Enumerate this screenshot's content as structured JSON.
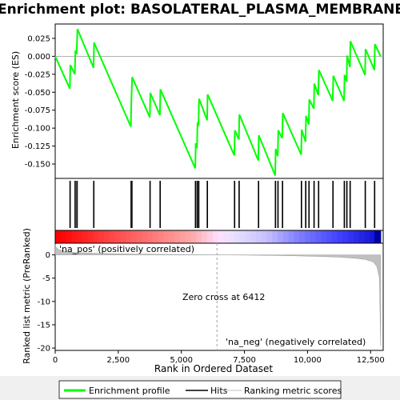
{
  "chart_data": {
    "type": "line",
    "title": "Enrichment plot: BASOLATERAL_PLASMA_MEMBRANE",
    "xlabel": "Rank in Ordered Dataset",
    "ylabel_top": "Enrichment score (ES)",
    "ylabel_bottom": "Ranked list metric (PreRanked)",
    "x_ticks": [
      "0",
      "2,500",
      "5,000",
      "7,500",
      "10,000",
      "12,500"
    ],
    "x_tick_values": [
      0,
      2500,
      5000,
      7500,
      10000,
      12500
    ],
    "xlim": [
      0,
      13000
    ],
    "es_ticks": [
      "0.025",
      "0.000",
      "-0.025",
      "-0.050",
      "-0.075",
      "-0.100",
      "-0.125",
      "-0.150"
    ],
    "es_tick_values": [
      0.025,
      0.0,
      -0.025,
      -0.05,
      -0.075,
      -0.1,
      -0.125,
      -0.15
    ],
    "es_ylim": [
      -0.17,
      0.045
    ],
    "metric_ticks": [
      "0",
      "-5",
      "-10",
      "-15",
      "-20"
    ],
    "metric_tick_values": [
      0,
      -5,
      -10,
      -15,
      -20
    ],
    "metric_ylim": [
      -20.5,
      2.5
    ],
    "zero_cross_label": "Zero cross at 6412",
    "zero_cross": 6412,
    "pos_label": "'na_pos' (positively correlated)",
    "neg_label": "'na_neg' (negatively correlated)",
    "es_profile": [
      [
        0,
        0.0
      ],
      [
        580,
        -0.045
      ],
      [
        600,
        -0.012
      ],
      [
        780,
        -0.025
      ],
      [
        800,
        0.008
      ],
      [
        850,
        0.003
      ],
      [
        880,
        0.038
      ],
      [
        1520,
        -0.016
      ],
      [
        1540,
        0.019
      ],
      [
        3000,
        -0.098
      ],
      [
        3020,
        -0.062
      ],
      [
        3050,
        -0.029
      ],
      [
        3750,
        -0.085
      ],
      [
        3770,
        -0.051
      ],
      [
        4150,
        -0.082
      ],
      [
        4170,
        -0.046
      ],
      [
        5550,
        -0.156
      ],
      [
        5570,
        -0.121
      ],
      [
        5620,
        -0.128
      ],
      [
        5640,
        -0.092
      ],
      [
        5680,
        -0.097
      ],
      [
        5700,
        -0.059
      ],
      [
        6020,
        -0.089
      ],
      [
        6040,
        -0.053
      ],
      [
        7100,
        -0.138
      ],
      [
        7120,
        -0.103
      ],
      [
        7280,
        -0.116
      ],
      [
        7300,
        -0.081
      ],
      [
        8050,
        -0.145
      ],
      [
        8070,
        -0.11
      ],
      [
        8720,
        -0.166
      ],
      [
        8740,
        -0.129
      ],
      [
        8820,
        -0.139
      ],
      [
        8840,
        -0.103
      ],
      [
        9000,
        -0.114
      ],
      [
        9020,
        -0.079
      ],
      [
        9750,
        -0.137
      ],
      [
        9770,
        -0.102
      ],
      [
        9920,
        -0.119
      ],
      [
        9940,
        -0.083
      ],
      [
        10050,
        -0.095
      ],
      [
        10070,
        -0.06
      ],
      [
        10250,
        -0.073
      ],
      [
        10270,
        -0.038
      ],
      [
        10430,
        -0.054
      ],
      [
        10450,
        -0.019
      ],
      [
        11000,
        -0.062
      ],
      [
        11020,
        -0.027
      ],
      [
        11450,
        -0.062
      ],
      [
        11470,
        -0.026
      ],
      [
        11550,
        -0.035
      ],
      [
        11570,
        0.001
      ],
      [
        11680,
        -0.015
      ],
      [
        11700,
        0.021
      ],
      [
        12280,
        -0.026
      ],
      [
        12300,
        0.01
      ],
      [
        12650,
        -0.019
      ],
      [
        12670,
        0.017
      ],
      [
        12900,
        0.0
      ]
    ],
    "hits": [
      580,
      600,
      780,
      800,
      850,
      880,
      1520,
      1540,
      3000,
      3020,
      3050,
      3750,
      3770,
      4150,
      4170,
      5550,
      5570,
      5620,
      5640,
      5680,
      5700,
      6020,
      6040,
      7100,
      7120,
      7280,
      7300,
      8050,
      8070,
      8720,
      8740,
      8820,
      8840,
      9000,
      9020,
      9750,
      9770,
      9920,
      9940,
      10050,
      10070,
      10250,
      10270,
      10430,
      10450,
      11000,
      11020,
      11450,
      11470,
      11550,
      11570,
      11680,
      11700,
      12280,
      12300,
      12650,
      12670
    ],
    "metric_curve": [
      [
        0,
        2.2
      ],
      [
        40,
        1.6
      ],
      [
        150,
        1.1
      ],
      [
        400,
        0.75
      ],
      [
        800,
        0.5
      ],
      [
        1500,
        0.35
      ],
      [
        2500,
        0.22
      ],
      [
        3500,
        0.14
      ],
      [
        4500,
        0.08
      ],
      [
        5500,
        0.03
      ],
      [
        6412,
        0.0
      ],
      [
        7500,
        -0.05
      ],
      [
        8500,
        -0.12
      ],
      [
        9500,
        -0.22
      ],
      [
        10500,
        -0.35
      ],
      [
        11300,
        -0.5
      ],
      [
        11900,
        -0.75
      ],
      [
        12300,
        -1.0
      ],
      [
        12600,
        -1.5
      ],
      [
        12750,
        -2.5
      ],
      [
        12850,
        -5.0
      ],
      [
        12900,
        -19.5
      ]
    ],
    "colors": {
      "profile": "#00ff00",
      "hits": "#000000",
      "metric_fill": "#c0c0c0",
      "zero_cross_line": "#a0a0a0",
      "pos_label": "#ff0000",
      "neg_label": "#0000cc"
    },
    "legend": [
      "Enrichment profile",
      "Hits",
      "Ranking metric scores"
    ]
  }
}
